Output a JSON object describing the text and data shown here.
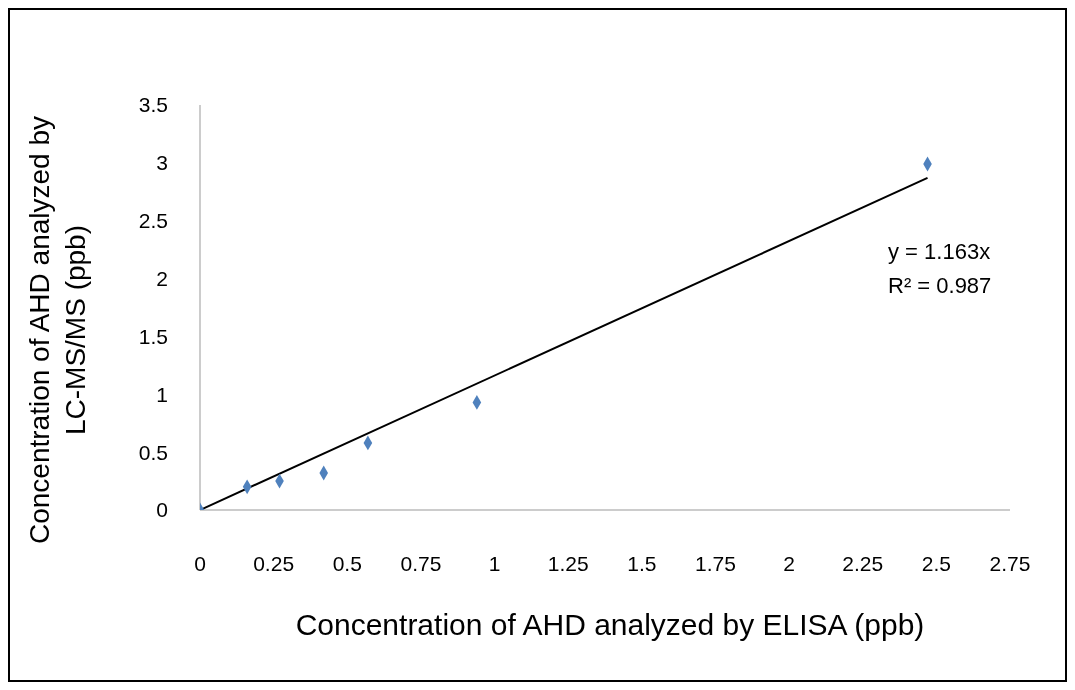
{
  "chart_data": {
    "type": "scatter",
    "xlabel": "Concentration of AHD analyzed by ELISA (ppb)",
    "ylabel": "Concentration of AHD analyzed by LC-MS/MS (ppb)",
    "x": [
      0,
      0.16,
      0.27,
      0.42,
      0.57,
      0.94,
      2.47
    ],
    "series": [
      {
        "color": "#4f81bd",
        "marker": "diamond",
        "values": [
          0,
          0.2,
          0.25,
          0.32,
          0.58,
          0.93,
          2.99
        ]
      },
      {
        "type": "line",
        "color": "#000000",
        "marker": "none",
        "x": [
          0,
          2.47
        ],
        "values": [
          0,
          2.87
        ]
      }
    ],
    "xlim": [
      0,
      2.75
    ],
    "xticks": [
      0,
      0.25,
      0.5,
      0.75,
      1,
      1.25,
      1.5,
      1.75,
      2,
      2.25,
      2.5,
      2.75
    ],
    "ylim": [
      0,
      3.5
    ],
    "yticks": [
      0,
      0.5,
      1,
      1.5,
      2,
      2.5,
      3,
      3.5
    ],
    "grid": false,
    "annotations": [
      "y = 1.163x",
      "R² = 0.987"
    ]
  }
}
